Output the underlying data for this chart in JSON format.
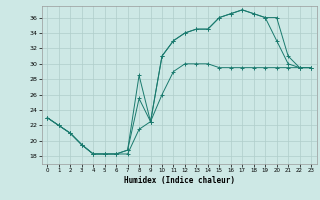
{
  "title": "",
  "xlabel": "Humidex (Indice chaleur)",
  "bg_color": "#cde8e5",
  "line_color": "#1a7a6e",
  "grid_color": "#b0ceca",
  "xlim": [
    -0.5,
    23.5
  ],
  "ylim": [
    17,
    37.5
  ],
  "yticks": [
    18,
    20,
    22,
    24,
    26,
    28,
    30,
    32,
    34,
    36
  ],
  "xticks": [
    0,
    1,
    2,
    3,
    4,
    5,
    6,
    7,
    8,
    9,
    10,
    11,
    12,
    13,
    14,
    15,
    16,
    17,
    18,
    19,
    20,
    21,
    22,
    23
  ],
  "line1_x": [
    0,
    1,
    2,
    3,
    4,
    5,
    6,
    7,
    8,
    9,
    10,
    11,
    12,
    13,
    14,
    15,
    16,
    17,
    18,
    19,
    20,
    21,
    22,
    23
  ],
  "line1_y": [
    23,
    22,
    21,
    19.5,
    18.3,
    18.3,
    18.3,
    18.3,
    21.5,
    22.5,
    26,
    29,
    30,
    30,
    30,
    29.5,
    29.5,
    29.5,
    29.5,
    29.5,
    29.5,
    29.5,
    29.5,
    29.5
  ],
  "line2_x": [
    0,
    1,
    2,
    3,
    4,
    5,
    6,
    7,
    8,
    9,
    10,
    11,
    12,
    13,
    14,
    15,
    16,
    17,
    18,
    19,
    20,
    21,
    22,
    23
  ],
  "line2_y": [
    23,
    22,
    21,
    19.5,
    18.3,
    18.3,
    18.3,
    18.8,
    25.5,
    22.5,
    31,
    33,
    34,
    34.5,
    34.5,
    36,
    36.5,
    37,
    36.5,
    36,
    33,
    30,
    29.5,
    29.5
  ],
  "line3_x": [
    0,
    1,
    2,
    3,
    4,
    5,
    6,
    7,
    8,
    9,
    10,
    11,
    12,
    13,
    14,
    15,
    16,
    17,
    18,
    19,
    20,
    21,
    22,
    23
  ],
  "line3_y": [
    23,
    22,
    21,
    19.5,
    18.3,
    18.3,
    18.3,
    18.8,
    28.5,
    22.5,
    31,
    33,
    34,
    34.5,
    34.5,
    36,
    36.5,
    37,
    36.5,
    36,
    36,
    31,
    29.5,
    29.5
  ]
}
